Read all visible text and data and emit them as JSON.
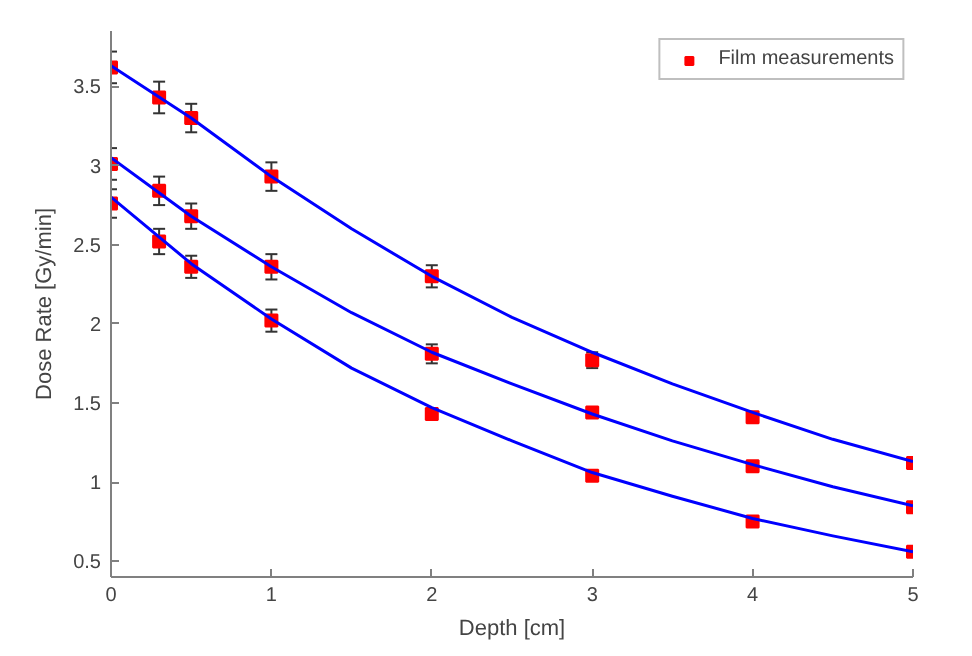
{
  "chart_data": {
    "type": "scatter",
    "xlabel": "Depth [cm]",
    "ylabel": "Dose Rate [Gy/min]",
    "xlim": [
      0,
      5
    ],
    "ylim": [
      0.4,
      3.85
    ],
    "xticks": [
      0,
      1,
      2,
      3,
      4,
      5
    ],
    "yticks": [
      0.5,
      1,
      1.5,
      2,
      2.5,
      3,
      3.5
    ],
    "grid": false,
    "legend": "top right",
    "series": [
      {
        "name": "Film measurements",
        "marker": "square",
        "color": "#ff0000",
        "x": [
          0,
          0.3,
          0.5,
          1,
          2,
          3,
          4,
          5
        ],
        "values": [
          3.62,
          3.43,
          3.3,
          2.93,
          2.3,
          1.77,
          1.41,
          1.12
        ],
        "errors": [
          0.1,
          0.1,
          0.09,
          0.09,
          0.07,
          0.05,
          null,
          null
        ]
      },
      {
        "marker": "square",
        "color": "#ff0000",
        "x": [
          0,
          0.3,
          0.5,
          1,
          2,
          3,
          4,
          5
        ],
        "values": [
          3.01,
          2.84,
          2.68,
          2.36,
          1.81,
          1.44,
          1.1,
          0.84
        ],
        "errors": [
          0.1,
          0.09,
          0.08,
          0.08,
          0.06,
          null,
          null,
          null
        ]
      },
      {
        "marker": "square",
        "color": "#ff0000",
        "x": [
          0,
          0.3,
          0.5,
          1,
          2,
          3,
          4,
          5
        ],
        "values": [
          2.76,
          2.52,
          2.36,
          2.02,
          1.43,
          1.04,
          0.75,
          0.56
        ],
        "errors": [
          0.09,
          0.08,
          0.07,
          0.07,
          null,
          null,
          null,
          null
        ]
      },
      {
        "type": "line",
        "marker": "none",
        "color": "#0000ff",
        "x": [
          0,
          0.5,
          1,
          1.5,
          2,
          2.5,
          3,
          3.5,
          4,
          4.5,
          5
        ],
        "values": [
          3.63,
          3.3,
          2.93,
          2.6,
          2.3,
          2.04,
          1.82,
          1.62,
          1.44,
          1.27,
          1.13
        ]
      },
      {
        "type": "line",
        "marker": "none",
        "color": "#0000ff",
        "x": [
          0,
          0.5,
          1,
          1.5,
          2,
          2.5,
          3,
          3.5,
          4,
          4.5,
          5
        ],
        "values": [
          3.05,
          2.68,
          2.36,
          2.07,
          1.82,
          1.62,
          1.43,
          1.26,
          1.11,
          0.97,
          0.85
        ]
      },
      {
        "type": "line",
        "marker": "none",
        "color": "#0000ff",
        "x": [
          0,
          0.5,
          1,
          1.5,
          2,
          2.5,
          3,
          3.5,
          4,
          4.5,
          5
        ],
        "values": [
          2.8,
          2.38,
          2.03,
          1.72,
          1.47,
          1.26,
          1.06,
          0.91,
          0.77,
          0.66,
          0.56
        ]
      }
    ]
  }
}
